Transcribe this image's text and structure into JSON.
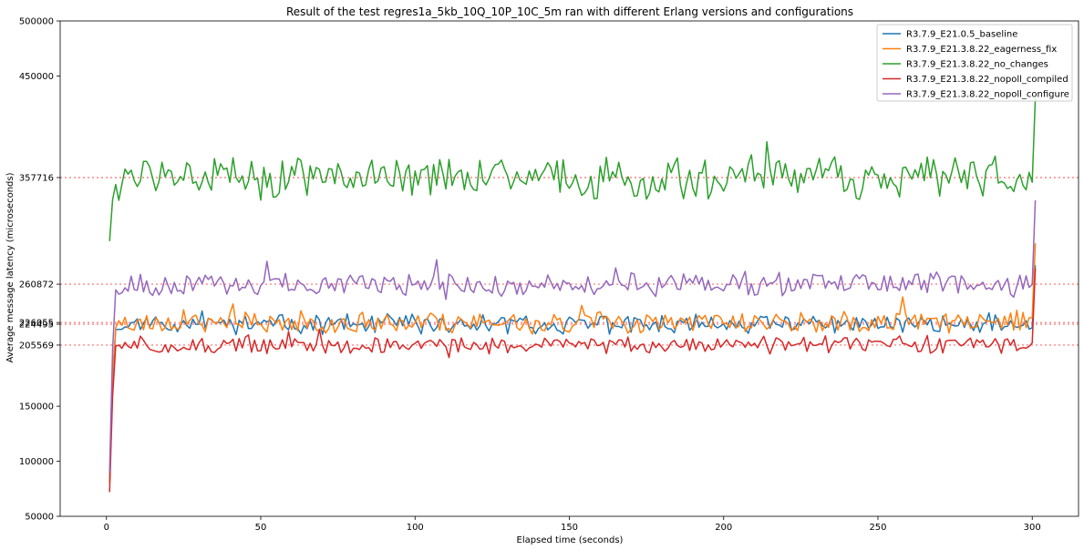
{
  "chart_data": {
    "type": "line",
    "title": "Result of the test regres1a_5kb_10Q_10P_10C_5m ran with different Erlang versions and configurations",
    "xlabel": "Elapsed time (seconds)",
    "ylabel": "Average message latency (microseconds)",
    "xlim": [
      -15,
      315
    ],
    "ylim": [
      50000,
      500000
    ],
    "xticks": [
      0,
      50,
      100,
      150,
      200,
      250,
      300
    ],
    "yticks": [
      50000,
      100000,
      150000,
      450000,
      500000
    ],
    "ytick_labels": [
      "50000",
      "100000",
      "150000",
      "450000",
      "500000"
    ],
    "reference_lines": [
      {
        "value": 357716,
        "label": "357716"
      },
      {
        "value": 260872,
        "label": "260872"
      },
      {
        "value": 226055,
        "label": "226055"
      },
      {
        "value": 224495,
        "label": "224495"
      },
      {
        "value": 205569,
        "label": "205569"
      }
    ],
    "legend_position": "top-right",
    "grid": false,
    "series": [
      {
        "name": "R3.7.9_E21.0.5_baseline",
        "color": "#1f77b4",
        "start": 85000,
        "mean": 224495,
        "amplitude": 7000,
        "end": 278000,
        "seed": 11
      },
      {
        "name": "R3.7.9_E21.3.8.22_eagerness_fix",
        "color": "#ff7f0e",
        "start": 80000,
        "mean": 226055,
        "amplitude": 8000,
        "end": 298000,
        "seed": 23
      },
      {
        "name": "R3.7.9_E21.3.8.22_no_changes",
        "color": "#2ca02c",
        "start": 300000,
        "mean": 357716,
        "amplitude": 16000,
        "end": 430000,
        "seed": 37
      },
      {
        "name": "R3.7.9_E21.3.8.22_nopoll_compiled",
        "color": "#d62728",
        "start": 72000,
        "mean": 205569,
        "amplitude": 6500,
        "end": 275000,
        "seed": 51
      },
      {
        "name": "R3.7.9_E21.3.8.22_nopoll_configure",
        "color": "#9467bd",
        "start": 90000,
        "mean": 260872,
        "amplitude": 8500,
        "end": 337000,
        "seed": 67
      }
    ],
    "x_range": [
      1,
      301
    ]
  }
}
